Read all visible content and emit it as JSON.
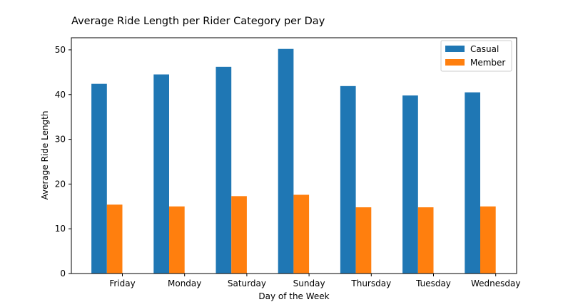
{
  "chart_data": {
    "type": "bar",
    "title": "Average Ride Length per Rider Category per Day",
    "xlabel": "Day of the Week",
    "ylabel": "Average Ride Length",
    "categories": [
      "Friday",
      "Monday",
      "Saturday",
      "Sunday",
      "Thursday",
      "Tuesday",
      "Wednesday"
    ],
    "series": [
      {
        "name": "Casual",
        "color": "#1f77b4",
        "values": [
          42.4,
          44.5,
          46.2,
          50.2,
          41.9,
          39.8,
          40.5
        ]
      },
      {
        "name": "Member",
        "color": "#ff7f0e",
        "values": [
          15.4,
          15.0,
          17.3,
          17.6,
          14.8,
          14.8,
          15.0
        ]
      }
    ],
    "ylim": [
      0,
      52.7
    ],
    "yticks": [
      0,
      10,
      20,
      30,
      40,
      50
    ],
    "grid": false,
    "legend_position": "top-right"
  }
}
